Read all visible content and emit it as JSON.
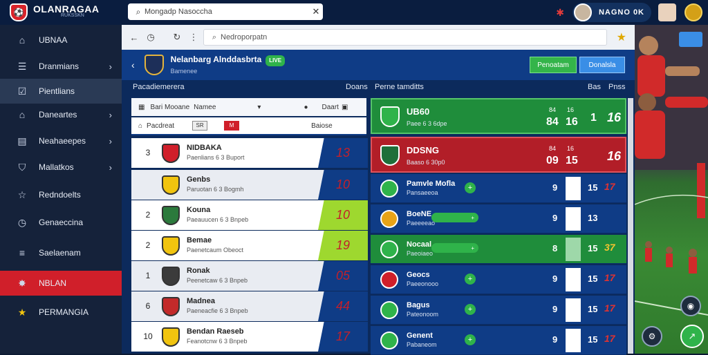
{
  "app": {
    "logo_title": "OLANRAGAA",
    "logo_subtitle": "RUKSSKN",
    "search_placeholder": "Mongadp Nasoccha",
    "user_name": "NAGNO 0K"
  },
  "sidebar": {
    "items": [
      {
        "label": "UBNAA",
        "icon": "home-icon",
        "chevron": false
      },
      {
        "label": "Dranmians",
        "icon": "list-icon",
        "chevron": true
      },
      {
        "label": "Pientlians",
        "icon": "checkbox-icon",
        "chevron": false,
        "selected": true
      },
      {
        "label": "Daneartes",
        "icon": "house-icon",
        "chevron": true
      },
      {
        "label": "Neahaeepes",
        "icon": "document-icon",
        "chevron": true
      },
      {
        "label": "Mallatkos",
        "icon": "shield-icon",
        "chevron": true
      },
      {
        "label": "Redndoelts",
        "icon": "star-outline-icon",
        "chevron": false
      },
      {
        "label": "Genaeccina",
        "icon": "clock-icon",
        "chevron": false
      },
      {
        "label": "Saelaenam",
        "icon": "menu-icon",
        "chevron": false
      },
      {
        "label": "NBLAN",
        "icon": "badge-icon",
        "chevron": false,
        "highlight": true
      },
      {
        "label": "PERMANGIA",
        "icon": "star-icon",
        "chevron": false
      }
    ]
  },
  "browser": {
    "address": "Nedroporpatn"
  },
  "header": {
    "title": "Nelanbarg Alnddasbrta",
    "subtitle": "Bamenee",
    "live": "LIVE",
    "btn_green": "Penoatam",
    "btn_blue": "Donalsla"
  },
  "sections": {
    "left_title": "Pacadiemerera",
    "left_col": "Doans",
    "right_title": "Perne tamditts",
    "right_col1": "Bas",
    "right_col2": "Pnss"
  },
  "filters": {
    "f1_label": "Bari Mooane",
    "f1_value": "Namee",
    "f1_right": "Daart",
    "f2_label": "Pacdreat",
    "f2_chip1": "SR",
    "f2_chip2": "M",
    "f2_right": "Baiose"
  },
  "standings": [
    {
      "rank": "3",
      "name": "NIDBAKA",
      "sub": "Paenlians 6 3 Buport",
      "pts": "13",
      "badge": "#d01f2a",
      "lime": false,
      "alt": false
    },
    {
      "rank": "",
      "name": "Genbs",
      "sub": "Paruotan 6 3 Bogmh",
      "pts": "10",
      "badge": "#f1c40f",
      "lime": false,
      "alt": true
    },
    {
      "rank": "2",
      "name": "Kouna",
      "sub": "Paeauucen 6 3 Bnpeb",
      "pts": "10",
      "badge": "#2b7a3c",
      "lime": true,
      "alt": false
    },
    {
      "rank": "2",
      "name": "Bemae",
      "sub": "Paenetcaum Obeoct",
      "pts": "19",
      "badge": "#f1c40f",
      "lime": true,
      "alt": false
    },
    {
      "rank": "1",
      "name": "Ronak",
      "sub": "Peenetcaw 6 3 Bnpeb",
      "pts": "05",
      "badge": "#3b3b3b",
      "lime": false,
      "alt": true
    },
    {
      "rank": "6",
      "name": "Madnea",
      "sub": "Paeneacfie 6 3 Bnpeb",
      "pts": "44",
      "badge": "#c32a2a",
      "lime": false,
      "alt": true
    },
    {
      "rank": "10",
      "name": "Bendan Raeseb",
      "sub": "Feanotcnw 6 3 Bnpeb",
      "pts": "17",
      "badge": "#f1c40f",
      "lime": false,
      "alt": false
    }
  ],
  "cards": [
    {
      "name": "UB60",
      "sub": "Paee 6 3 6dpe",
      "a": "84",
      "b": "16",
      "c": "1",
      "big": "16",
      "sm1": "84",
      "sm2": "16",
      "tone": "green"
    },
    {
      "name": "DDSNG",
      "sub": "Baaso 6 30p0",
      "a": "09",
      "b": "15",
      "c": "",
      "big": "16",
      "sm1": "84",
      "sm2": "16",
      "tone": "red"
    }
  ],
  "fixtures": [
    {
      "name": "Pamvle Mofla",
      "sub": "Pansaeeoa",
      "s1": "9",
      "s2": "15",
      "s3": "17",
      "badge": "#2fb34a",
      "pill": false,
      "green": false
    },
    {
      "name": "BoeNE",
      "sub": "Paeeeeao",
      "s1": "9",
      "s2": "13",
      "s3": "",
      "badge": "#e8a317",
      "pill": true,
      "green": false
    },
    {
      "name": "Nocaal",
      "sub": "Paeoiaeo",
      "s1": "8",
      "s2": "15",
      "s3": "37",
      "badge": "#2fb34a",
      "pill": true,
      "green": true
    },
    {
      "name": "Geocs",
      "sub": "Paeeonooo",
      "s1": "9",
      "s2": "15",
      "s3": "17",
      "badge": "#d01f2a",
      "pill": false,
      "green": false
    },
    {
      "name": "Bagus",
      "sub": "Pateonoom",
      "s1": "9",
      "s2": "15",
      "s3": "17",
      "badge": "#2fb34a",
      "pill": false,
      "green": false
    },
    {
      "name": "Genent",
      "sub": "Pabaneom",
      "s1": "9",
      "s2": "15",
      "s3": "17",
      "badge": "#2fb34a",
      "pill": false,
      "green": false
    }
  ]
}
